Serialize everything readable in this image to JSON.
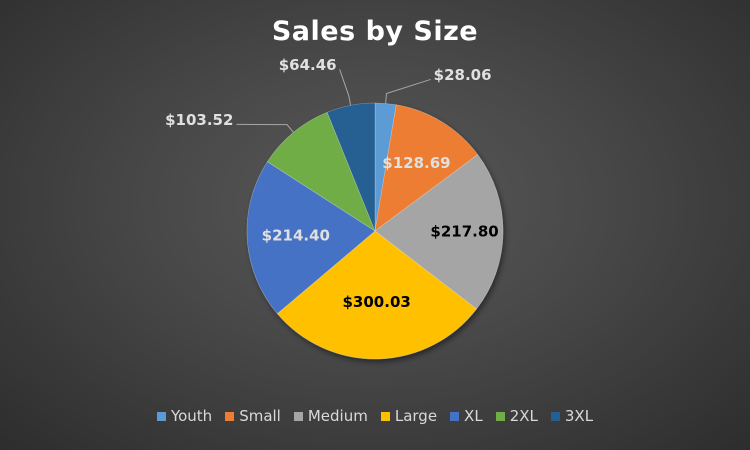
{
  "chart_data": {
    "type": "pie",
    "title": "Sales by Size",
    "categories": [
      "Youth",
      "Small",
      "Medium",
      "Large",
      "XL",
      "2XL",
      "3XL"
    ],
    "values": [
      28.06,
      128.69,
      217.8,
      300.03,
      214.4,
      103.52,
      64.46
    ],
    "labels": [
      "$28.06",
      "$128.69",
      "$217.80",
      "$300.03",
      "$214.40",
      "$103.52",
      "$64.46"
    ],
    "colors": [
      "#5b9bd5",
      "#ed7d31",
      "#a5a5a5",
      "#ffc000",
      "#4472c4",
      "#70ad47",
      "#255e91"
    ],
    "label_colors": [
      "#e0e0e0",
      "#e0e0e0",
      "#000000",
      "#000000",
      "#e0e0e0",
      "#e0e0e0",
      "#e0e0e0"
    ],
    "legend_position": "bottom",
    "start_angle": "top, clockwise"
  }
}
